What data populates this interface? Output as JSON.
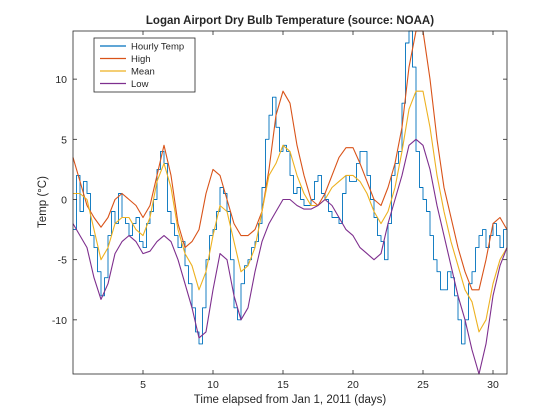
{
  "chart_data": {
    "type": "line",
    "title": "Logan Airport Dry Bulb Temperature (source: NOAA)",
    "xlabel": "Time elapsed from Jan 1, 2011 (days)",
    "ylabel": "Temp (°C)",
    "xlim": [
      0,
      31
    ],
    "ylim": [
      -14.5,
      14
    ],
    "xticks": [
      5,
      10,
      15,
      20,
      25,
      30
    ],
    "yticks": [
      -10,
      -5,
      0,
      5,
      10
    ],
    "grid": false,
    "legend_position": "top-left",
    "series": [
      {
        "name": "Hourly Temp",
        "color": "#0072BD",
        "x": [
          0.0,
          0.25,
          0.5,
          0.75,
          1.0,
          1.25,
          1.5,
          1.75,
          2.0,
          2.25,
          2.5,
          2.75,
          3.0,
          3.25,
          3.5,
          3.75,
          4.0,
          4.25,
          4.5,
          4.75,
          5.0,
          5.25,
          5.5,
          5.75,
          6.0,
          6.25,
          6.5,
          6.75,
          7.0,
          7.25,
          7.5,
          7.75,
          8.0,
          8.25,
          8.5,
          8.75,
          9.0,
          9.25,
          9.5,
          9.75,
          10.0,
          10.25,
          10.5,
          10.75,
          11.0,
          11.25,
          11.5,
          11.75,
          12.0,
          12.25,
          12.5,
          12.75,
          13.0,
          13.25,
          13.5,
          13.75,
          14.0,
          14.25,
          14.5,
          14.75,
          15.0,
          15.25,
          15.5,
          15.75,
          16.0,
          16.25,
          16.5,
          16.75,
          17.0,
          17.25,
          17.5,
          17.75,
          18.0,
          18.25,
          18.5,
          18.75,
          19.0,
          19.25,
          19.5,
          19.75,
          20.0,
          20.25,
          20.5,
          20.75,
          21.0,
          21.25,
          21.5,
          21.75,
          22.0,
          22.25,
          22.5,
          22.75,
          23.0,
          23.25,
          23.5,
          23.75,
          24.0,
          24.25,
          24.5,
          24.75,
          25.0,
          25.25,
          25.5,
          25.75,
          26.0,
          26.25,
          26.5,
          26.75,
          27.0,
          27.25,
          27.5,
          27.75,
          28.0,
          28.25,
          28.5,
          28.75,
          29.0,
          29.25,
          29.5,
          29.75,
          30.0,
          30.25,
          30.5,
          30.75,
          31.0
        ],
        "values": [
          -2.5,
          2.0,
          -1.0,
          1.5,
          0.5,
          -3.0,
          -4.0,
          -6.0,
          -8.0,
          -6.5,
          -3.0,
          -1.0,
          -2.0,
          0.5,
          -1.5,
          -2.0,
          -3.0,
          -2.0,
          -1.5,
          -3.5,
          -4.0,
          -2.0,
          -1.0,
          0.0,
          2.5,
          4.0,
          3.0,
          -1.0,
          -2.0,
          -3.0,
          -4.0,
          -3.5,
          -5.5,
          -7.0,
          -9.0,
          -11.0,
          -12.0,
          -9.0,
          -5.0,
          -3.0,
          -2.5,
          -1.0,
          1.0,
          0.5,
          -1.0,
          -5.0,
          -9.0,
          -10.0,
          -7.0,
          -5.5,
          -5.0,
          -4.0,
          -3.5,
          -2.0,
          1.0,
          5.0,
          7.0,
          8.5,
          6.0,
          4.0,
          4.5,
          4.0,
          2.0,
          0.5,
          1.0,
          0.0,
          -0.5,
          -0.5,
          0.0,
          1.5,
          2.0,
          0.5,
          0.0,
          -1.0,
          -1.5,
          -1.5,
          -2.0,
          0.5,
          2.0,
          1.5,
          1.5,
          3.0,
          4.0,
          4.0,
          2.0,
          0.0,
          -1.5,
          -3.0,
          -3.5,
          -5.0,
          -2.0,
          2.0,
          3.0,
          4.0,
          8.0,
          13.0,
          14.0,
          11.0,
          4.0,
          1.0,
          0.0,
          -1.0,
          -3.0,
          -5.0,
          -6.0,
          -7.5,
          -7.5,
          -6.0,
          -6.5,
          -8.0,
          -10.0,
          -12.0,
          -10.0,
          -7.0,
          -6.0,
          -4.0,
          -3.0,
          -2.5,
          -4.0,
          -3.0,
          -2.0,
          -3.0,
          -4.0,
          -2.5,
          -4.0
        ]
      },
      {
        "name": "High",
        "color": "#D95319",
        "x": [
          0.0,
          0.5,
          1.0,
          1.5,
          2.0,
          2.5,
          3.0,
          3.5,
          4.0,
          4.5,
          5.0,
          5.5,
          6.0,
          6.5,
          7.0,
          7.5,
          8.0,
          8.5,
          9.0,
          9.5,
          10.0,
          10.5,
          11.0,
          11.5,
          12.0,
          12.5,
          13.0,
          13.5,
          14.0,
          14.5,
          15.0,
          15.5,
          16.0,
          16.5,
          17.0,
          17.5,
          18.0,
          18.5,
          19.0,
          19.5,
          20.0,
          20.5,
          21.0,
          21.5,
          22.0,
          22.5,
          23.0,
          23.5,
          24.0,
          24.5,
          25.0,
          25.5,
          26.0,
          26.5,
          27.0,
          27.5,
          28.0,
          28.5,
          29.0,
          29.5,
          30.0,
          30.5,
          31.0
        ],
        "values": [
          3.5,
          1.5,
          -0.5,
          -1.5,
          -2.3,
          -1.5,
          0.0,
          0.5,
          0.0,
          -0.5,
          -1.5,
          -0.5,
          2.0,
          4.5,
          2.0,
          -2.0,
          -4.0,
          -3.5,
          -2.5,
          0.5,
          2.5,
          2.0,
          0.0,
          -2.0,
          -3.0,
          -3.0,
          -2.5,
          -1.0,
          2.5,
          7.0,
          9.0,
          8.0,
          4.5,
          2.0,
          0.0,
          -0.5,
          0.5,
          2.0,
          3.5,
          4.3,
          4.3,
          3.0,
          1.5,
          0.0,
          -0.5,
          1.0,
          3.0,
          6.0,
          11.0,
          14.0,
          14.0,
          10.0,
          5.0,
          1.0,
          -1.5,
          -4.0,
          -6.0,
          -7.5,
          -7.5,
          -5.0,
          -2.0,
          -1.5,
          -2.5
        ]
      },
      {
        "name": "Mean",
        "color": "#EDB120",
        "x": [
          0.0,
          0.5,
          1.0,
          1.5,
          2.0,
          2.5,
          3.0,
          3.5,
          4.0,
          4.5,
          5.0,
          5.5,
          6.0,
          6.5,
          7.0,
          7.5,
          8.0,
          8.5,
          9.0,
          9.5,
          10.0,
          10.5,
          11.0,
          11.5,
          12.0,
          12.5,
          13.0,
          13.5,
          14.0,
          14.5,
          15.0,
          15.5,
          16.0,
          16.5,
          17.0,
          17.5,
          18.0,
          18.5,
          19.0,
          19.5,
          20.0,
          20.5,
          21.0,
          21.5,
          22.0,
          22.5,
          23.0,
          23.5,
          24.0,
          24.5,
          25.0,
          25.5,
          26.0,
          26.5,
          27.0,
          27.5,
          28.0,
          28.5,
          29.0,
          29.5,
          30.0,
          30.5,
          31.0
        ],
        "values": [
          0.5,
          0.5,
          0.0,
          -2.5,
          -5.0,
          -4.0,
          -2.0,
          -1.5,
          -1.5,
          -2.5,
          -3.0,
          -1.5,
          1.5,
          3.0,
          1.0,
          -2.5,
          -4.5,
          -5.5,
          -7.5,
          -6.0,
          -3.0,
          -0.5,
          -1.0,
          -3.5,
          -6.0,
          -5.5,
          -4.0,
          -1.0,
          2.0,
          3.0,
          4.5,
          4.0,
          2.0,
          0.5,
          -0.5,
          -0.5,
          0.0,
          1.0,
          1.5,
          2.0,
          2.0,
          1.5,
          0.5,
          -1.0,
          -2.0,
          -1.0,
          1.0,
          4.0,
          7.5,
          9.0,
          9.0,
          6.0,
          2.0,
          -1.0,
          -3.5,
          -5.5,
          -7.5,
          -8.5,
          -11.0,
          -10.0,
          -7.0,
          -5.0,
          -4.0
        ]
      },
      {
        "name": "Low",
        "color": "#7E2F8E",
        "x": [
          0.0,
          0.5,
          1.0,
          1.5,
          2.0,
          2.5,
          3.0,
          3.5,
          4.0,
          4.5,
          5.0,
          5.5,
          6.0,
          6.5,
          7.0,
          7.5,
          8.0,
          8.5,
          9.0,
          9.5,
          10.0,
          10.5,
          11.0,
          11.5,
          12.0,
          12.5,
          13.0,
          13.5,
          14.0,
          14.5,
          15.0,
          15.5,
          16.0,
          16.5,
          17.0,
          17.5,
          18.0,
          18.5,
          19.0,
          19.5,
          20.0,
          20.5,
          21.0,
          21.5,
          22.0,
          22.5,
          23.0,
          23.5,
          24.0,
          24.5,
          25.0,
          25.5,
          26.0,
          26.5,
          27.0,
          27.5,
          28.0,
          28.5,
          29.0,
          29.5,
          30.0,
          30.5,
          31.0
        ],
        "values": [
          -2.0,
          -3.0,
          -4.0,
          -6.5,
          -8.3,
          -7.0,
          -4.5,
          -3.5,
          -3.0,
          -3.5,
          -4.5,
          -4.3,
          -3.5,
          -3.0,
          -3.5,
          -5.0,
          -7.0,
          -9.0,
          -11.5,
          -11.0,
          -7.5,
          -4.5,
          -5.0,
          -8.0,
          -10.0,
          -9.0,
          -6.0,
          -3.5,
          -2.0,
          -1.0,
          0.0,
          0.0,
          -0.5,
          -0.8,
          -0.8,
          -0.5,
          0.0,
          -0.5,
          -1.5,
          -2.5,
          -3.0,
          -4.0,
          -4.5,
          -5.0,
          -4.5,
          -2.0,
          0.0,
          2.0,
          4.5,
          5.0,
          4.5,
          2.5,
          -0.5,
          -3.0,
          -5.5,
          -8.0,
          -10.0,
          -12.5,
          -14.5,
          -12.0,
          -8.0,
          -5.5,
          -4.0
        ]
      }
    ]
  }
}
